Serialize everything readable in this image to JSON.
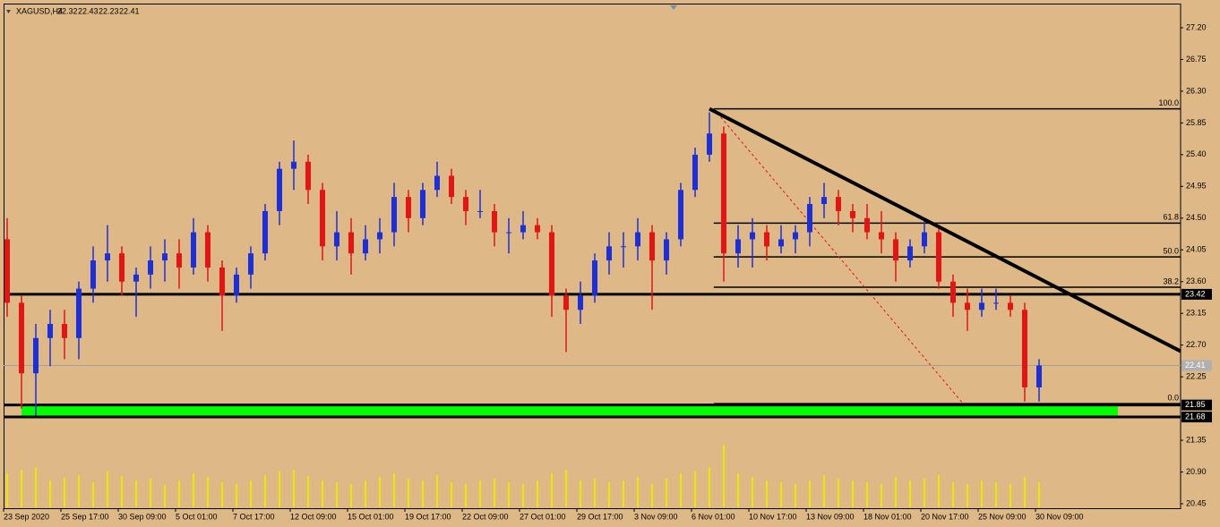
{
  "chart_data": {
    "type": "candlestick",
    "symbol": "XAGUSD,H4",
    "header_ohlc": [
      22.32,
      22.43,
      22.23,
      22.41
    ],
    "categories": [
      "23 Sep 2020",
      null,
      null,
      null,
      "25 Sep 17:00",
      null,
      null,
      null,
      "30 Sep 09:00",
      null,
      null,
      null,
      "5 Oct 01:00",
      null,
      null,
      null,
      "7 Oct 17:00",
      null,
      null,
      null,
      "12 Oct 09:00",
      null,
      null,
      null,
      "15 Oct 01:00",
      null,
      null,
      null,
      "19 Oct 17:00",
      null,
      null,
      null,
      "22 Oct 09:00",
      null,
      null,
      null,
      "27 Oct 01:00",
      null,
      null,
      null,
      "29 Oct 17:00",
      null,
      null,
      null,
      "3 Nov 09:00",
      null,
      null,
      null,
      "6 Nov 01:00",
      null,
      null,
      null,
      "10 Nov 17:00",
      null,
      null,
      null,
      "13 Nov 09:00",
      null,
      null,
      null,
      "18 Nov 01:00",
      null,
      null,
      null,
      "20 Nov 17:00",
      null,
      null,
      null,
      "25 Nov 09:00",
      null,
      null,
      null,
      "30 Nov 09:00"
    ],
    "open": [
      24.2,
      23.3,
      22.3,
      22.8,
      23.0,
      22.8,
      23.5,
      23.9,
      24.0,
      23.6,
      23.7,
      23.9,
      24.0,
      23.8,
      24.3,
      23.8,
      23.4,
      23.7,
      24.0,
      24.6,
      25.2,
      25.3,
      24.9,
      24.1,
      24.3,
      24.0,
      24.2,
      24.3,
      24.8,
      24.5,
      24.9,
      25.1,
      24.8,
      24.6,
      24.6,
      24.3,
      24.3,
      24.4,
      24.3,
      23.4,
      23.2,
      23.4,
      23.9,
      24.1,
      24.1,
      24.3,
      23.9,
      24.2,
      24.9,
      25.4,
      25.7,
      24.0,
      24.2,
      24.3,
      24.1,
      24.2,
      24.3,
      24.7,
      24.8,
      24.6,
      24.5,
      24.3,
      24.2,
      23.9,
      24.1,
      24.3,
      23.6,
      23.3,
      23.2,
      23.3,
      23.3,
      23.2,
      22.1
    ],
    "high": [
      24.5,
      23.4,
      23.0,
      23.2,
      23.2,
      23.6,
      24.1,
      24.4,
      24.1,
      23.8,
      24.1,
      24.2,
      24.2,
      24.5,
      24.4,
      23.9,
      23.8,
      24.1,
      24.7,
      25.3,
      25.6,
      25.4,
      25.0,
      24.6,
      24.5,
      24.4,
      24.5,
      25.0,
      24.9,
      25.0,
      25.3,
      25.2,
      24.9,
      24.9,
      24.7,
      24.5,
      24.6,
      24.5,
      24.4,
      23.5,
      23.6,
      24.0,
      24.3,
      24.3,
      24.5,
      24.4,
      24.3,
      25.0,
      25.5,
      26.0,
      25.8,
      24.4,
      24.5,
      24.4,
      24.4,
      24.4,
      24.8,
      25.0,
      24.9,
      24.7,
      24.7,
      24.6,
      24.3,
      24.2,
      24.5,
      24.4,
      23.7,
      23.5,
      23.5,
      23.5,
      23.4,
      23.3,
      22.5
    ],
    "low": [
      23.1,
      21.8,
      21.7,
      22.4,
      22.5,
      22.5,
      23.3,
      23.6,
      23.4,
      23.1,
      23.5,
      23.6,
      23.5,
      23.7,
      23.6,
      22.9,
      23.3,
      23.5,
      23.9,
      24.4,
      24.9,
      24.7,
      23.9,
      23.9,
      23.7,
      23.9,
      24.0,
      24.1,
      24.3,
      24.4,
      24.8,
      24.7,
      24.4,
      24.5,
      24.1,
      24.0,
      24.2,
      24.2,
      23.1,
      22.6,
      23.0,
      23.3,
      23.7,
      23.8,
      23.9,
      23.2,
      23.7,
      24.1,
      24.8,
      25.3,
      23.6,
      23.8,
      23.8,
      23.9,
      24.0,
      24.0,
      24.1,
      24.5,
      24.4,
      24.3,
      24.2,
      24.0,
      23.6,
      23.8,
      24.0,
      23.5,
      23.1,
      22.9,
      23.1,
      23.2,
      23.1,
      21.9,
      21.9
    ],
    "close": [
      23.3,
      22.3,
      22.8,
      23.0,
      22.8,
      23.5,
      23.9,
      24.0,
      23.6,
      23.7,
      23.9,
      24.0,
      23.8,
      24.3,
      23.8,
      23.4,
      23.7,
      24.0,
      24.6,
      25.2,
      25.3,
      24.9,
      24.1,
      24.3,
      24.0,
      24.2,
      24.3,
      24.8,
      24.5,
      24.9,
      25.1,
      24.8,
      24.6,
      24.6,
      24.3,
      24.3,
      24.4,
      24.3,
      23.4,
      23.2,
      23.4,
      23.9,
      24.1,
      24.1,
      24.3,
      23.9,
      24.2,
      24.9,
      25.4,
      25.7,
      24.0,
      24.2,
      24.3,
      24.1,
      24.2,
      24.3,
      24.7,
      24.8,
      24.6,
      24.5,
      24.3,
      24.2,
      23.9,
      24.1,
      24.3,
      23.6,
      23.3,
      23.2,
      23.3,
      23.3,
      23.2,
      22.1,
      22.41
    ],
    "volumes": [
      38,
      42,
      45,
      30,
      33,
      36,
      28,
      40,
      35,
      30,
      32,
      25,
      30,
      38,
      34,
      28,
      26,
      30,
      36,
      40,
      42,
      35,
      30,
      28,
      26,
      30,
      34,
      38,
      32,
      30,
      36,
      28,
      26,
      30,
      32,
      28,
      26,
      30,
      38,
      42,
      30,
      32,
      28,
      30,
      34,
      26,
      32,
      38,
      40,
      45,
      70,
      38,
      34,
      30,
      28,
      26,
      30,
      36,
      32,
      30,
      28,
      26,
      34,
      30,
      32,
      36,
      28,
      26,
      30,
      28,
      26,
      34,
      28
    ],
    "up_color": "#1d2fd8",
    "down_color": "#e31414",
    "volume_color": "#e8e800",
    "ylim": [
      20.45,
      27.2
    ],
    "yticks": [
      {
        "value": 27.2,
        "label": "27.20"
      },
      26.75,
      {
        "value": 26.3,
        "label": "26.30"
      },
      25.85,
      {
        "value": 25.4,
        "label": "25.40"
      },
      24.95,
      {
        "value": 24.5,
        "label": "24.50"
      },
      24.05,
      {
        "value": 23.6,
        "label": "23.60"
      },
      23.15,
      {
        "value": 22.7,
        "label": "22.70"
      },
      22.25,
      21.35,
      {
        "value": 20.9,
        "label": "20.90"
      },
      20.45
    ],
    "hlines": [
      {
        "value": 23.42
      },
      {
        "value": 21.85
      },
      {
        "value": 21.68
      }
    ],
    "zone": {
      "x": [
        1,
        77.5
      ],
      "y": [
        21.68,
        21.85
      ],
      "color": "#00ff00"
    },
    "trendline": {
      "x": [
        49,
        81.9
      ],
      "y": [
        26.05,
        22.61
      ]
    },
    "retracement_line": {
      "x": [
        49.3,
        66.7
      ],
      "y": [
        26.05,
        21.87
      ]
    },
    "fibonacci": {
      "start": 49.3,
      "levels": [
        {
          "label": "100.0",
          "value": 26.05
        },
        {
          "label": "61.8",
          "value": 24.43
        },
        {
          "label": "50.0",
          "value": 23.95
        },
        {
          "label": "38.2",
          "value": 23.52
        },
        {
          "label": "0.0",
          "value": 21.87
        }
      ]
    }
  }
}
